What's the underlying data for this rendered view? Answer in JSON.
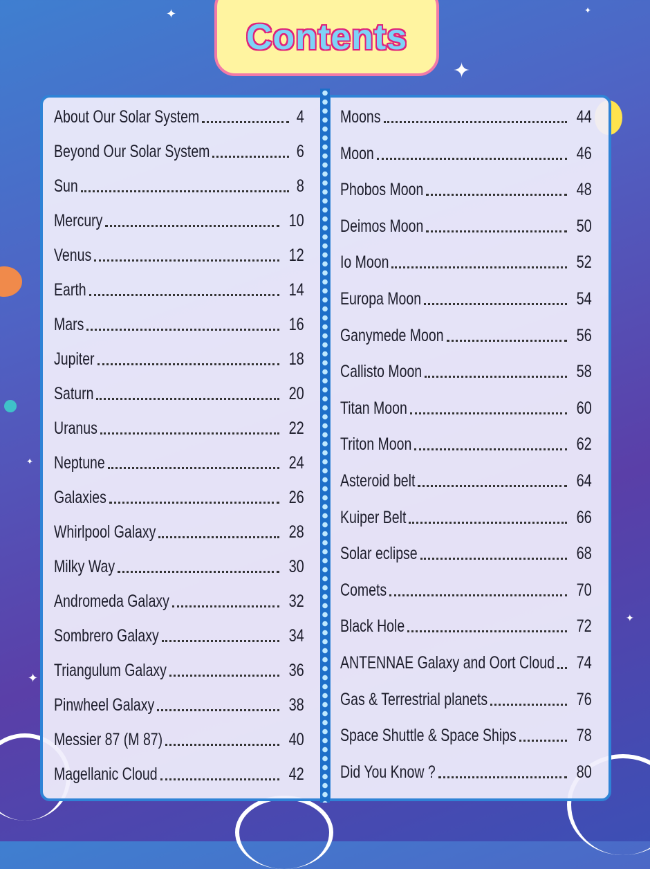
{
  "title": "Contents",
  "left_column": [
    {
      "label": "About Our Solar System",
      "page": "4"
    },
    {
      "label": "Beyond Our Solar System",
      "page": "6"
    },
    {
      "label": "Sun",
      "page": "8"
    },
    {
      "label": "Mercury",
      "page": "10"
    },
    {
      "label": "Venus",
      "page": "12"
    },
    {
      "label": "Earth",
      "page": "14"
    },
    {
      "label": "Mars",
      "page": "16"
    },
    {
      "label": "Jupiter",
      "page": "18"
    },
    {
      "label": "Saturn",
      "page": "20"
    },
    {
      "label": "Uranus",
      "page": "22"
    },
    {
      "label": "Neptune",
      "page": "24"
    },
    {
      "label": "Galaxies",
      "page": "26"
    },
    {
      "label": "Whirlpool Galaxy",
      "page": "28"
    },
    {
      "label": "Milky Way",
      "page": "30"
    },
    {
      "label": "Andromeda Galaxy",
      "page": "32"
    },
    {
      "label": "Sombrero Galaxy",
      "page": "34"
    },
    {
      "label": "Triangulum Galaxy",
      "page": "36"
    },
    {
      "label": "Pinwheel Galaxy",
      "page": "38"
    },
    {
      "label": "Messier 87 (M 87)",
      "page": "40"
    },
    {
      "label": "Magellanic Cloud",
      "page": "42"
    }
  ],
  "right_column": [
    {
      "label": "Moons",
      "page": "44"
    },
    {
      "label": "Moon",
      "page": "46"
    },
    {
      "label": "Phobos Moon",
      "page": "48"
    },
    {
      "label": "Deimos Moon",
      "page": "50"
    },
    {
      "label": "Io Moon",
      "page": "52"
    },
    {
      "label": "Europa Moon",
      "page": "54"
    },
    {
      "label": "Ganymede  Moon",
      "page": "56"
    },
    {
      "label": "Callisto Moon",
      "page": "58"
    },
    {
      "label": "Titan Moon",
      "page": "60"
    },
    {
      "label": "Triton Moon",
      "page": "62"
    },
    {
      "label": "Asteroid belt",
      "page": "64"
    },
    {
      "label": "Kuiper Belt",
      "page": "66"
    },
    {
      "label": "Solar eclipse",
      "page": "68"
    },
    {
      "label": "Comets",
      "page": "70"
    },
    {
      "label": "Black Hole",
      "page": "72"
    },
    {
      "label": "ANTENNAE Galaxy and Oort Cloud",
      "page": "74"
    },
    {
      "label": "Gas & Terrestrial planets",
      "page": "76"
    },
    {
      "label": "Space Shuttle & Space Ships",
      "page": "78"
    },
    {
      "label": "Did You Know ?",
      "page": "80"
    }
  ],
  "colors": {
    "title_fill": "#7ed3f7",
    "title_outline": "#e0217a",
    "title_box": "#fff4a0",
    "panel_border": "#2f83d6"
  }
}
